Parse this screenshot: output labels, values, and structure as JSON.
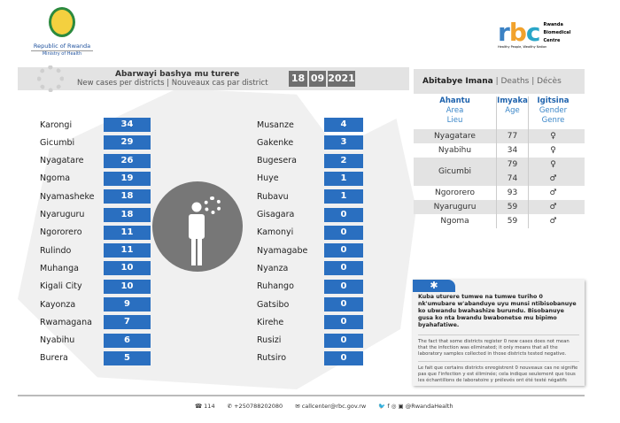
{
  "logos": {
    "left_line1": "Republic of Rwanda",
    "left_line2": "Ministry of Health",
    "right_name": [
      "Rwanda",
      "Biomedical",
      "Centre"
    ],
    "right_tagline": "Healthy People, Wealthy Nation",
    "rbc": "rbc"
  },
  "header": {
    "title": "Abarwayi bashya mu turere",
    "subtitle": "New cases per districts  |  Nouveaux cas par district",
    "date": [
      "18",
      "09",
      "2021"
    ]
  },
  "left_districts": [
    {
      "name": "Karongi",
      "cases": "34"
    },
    {
      "name": "Gicumbi",
      "cases": "29"
    },
    {
      "name": "Nyagatare",
      "cases": "26"
    },
    {
      "name": "Ngoma",
      "cases": "19"
    },
    {
      "name": "Nyamasheke",
      "cases": "18"
    },
    {
      "name": "Nyaruguru",
      "cases": "18"
    },
    {
      "name": "Ngororero",
      "cases": "11"
    },
    {
      "name": "Rulindo",
      "cases": "11"
    },
    {
      "name": "Muhanga",
      "cases": "10"
    },
    {
      "name": "Kigali City",
      "cases": "10"
    },
    {
      "name": "Kayonza",
      "cases": "9"
    },
    {
      "name": "Rwamagana",
      "cases": "7"
    },
    {
      "name": "Nyabihu",
      "cases": "6"
    },
    {
      "name": "Burera",
      "cases": "5"
    }
  ],
  "right_districts": [
    {
      "name": "Musanze",
      "cases": "4"
    },
    {
      "name": "Gakenke",
      "cases": "3"
    },
    {
      "name": "Bugesera",
      "cases": "2"
    },
    {
      "name": "Huye",
      "cases": "1"
    },
    {
      "name": "Rubavu",
      "cases": "1"
    },
    {
      "name": "Gisagara",
      "cases": "0"
    },
    {
      "name": "Kamonyi",
      "cases": "0"
    },
    {
      "name": "Nyamagabe",
      "cases": "0"
    },
    {
      "name": "Nyanza",
      "cases": "0"
    },
    {
      "name": "Ruhango",
      "cases": "0"
    },
    {
      "name": "Gatsibo",
      "cases": "0"
    },
    {
      "name": "Kirehe",
      "cases": "0"
    },
    {
      "name": "Rusizi",
      "cases": "0"
    },
    {
      "name": "Rutsiro",
      "cases": "0"
    }
  ],
  "deaths": {
    "title_bold": "Abitabye Imana",
    "title_rest": " |  Deaths  |  Décès",
    "headers": [
      [
        "Ahantu",
        "Area",
        "Lieu"
      ],
      [
        "Imyaka",
        "Age",
        ""
      ],
      [
        "Igitsina",
        "Gender",
        "Genre"
      ]
    ],
    "rows": [
      {
        "area": "Nyagatare",
        "age": "77",
        "gender": "♀"
      },
      {
        "area": "Nyabihu",
        "age": "34",
        "gender": "♀"
      },
      {
        "area": "Gicumbi",
        "age": "79",
        "gender": "♀"
      },
      {
        "area": "",
        "age": "74",
        "gender": "♂"
      },
      {
        "area": "Ngororero",
        "age": "93",
        "gender": "♂"
      },
      {
        "area": "Nyaruguru",
        "age": "59",
        "gender": "♂"
      },
      {
        "area": "Ngoma",
        "age": "59",
        "gender": "♂"
      }
    ]
  },
  "note": {
    "icon": "✱",
    "kinyarwanda": "Kuba uturere tumwe na tumwe turiho 0 nk'umubare w'abanduye  uyu munsi ntibisobanuye ko ubwandu bwahashize burundu. Bisobanuye gusa ko nta bwandu bwabonetse mu bipimo byahafatiwe.",
    "english": "The fact that some districts register 0 new cases does not mean that the infection was eliminated; it only means that all the laboratory samples collected in those districts tested negative.",
    "french": "Le fait que certains districts enregistrent 0 nouveaux cas ne signifie pas que l'infection y est éliminée; cela indique seulement que tous les échantillons de laboratoire y prélevés ont été testé négatifs"
  },
  "footer": {
    "hotline": "114",
    "phone": "+250788202080",
    "email": "callcenter@rbc.gov.rw",
    "social": "@RwandaHealth"
  }
}
